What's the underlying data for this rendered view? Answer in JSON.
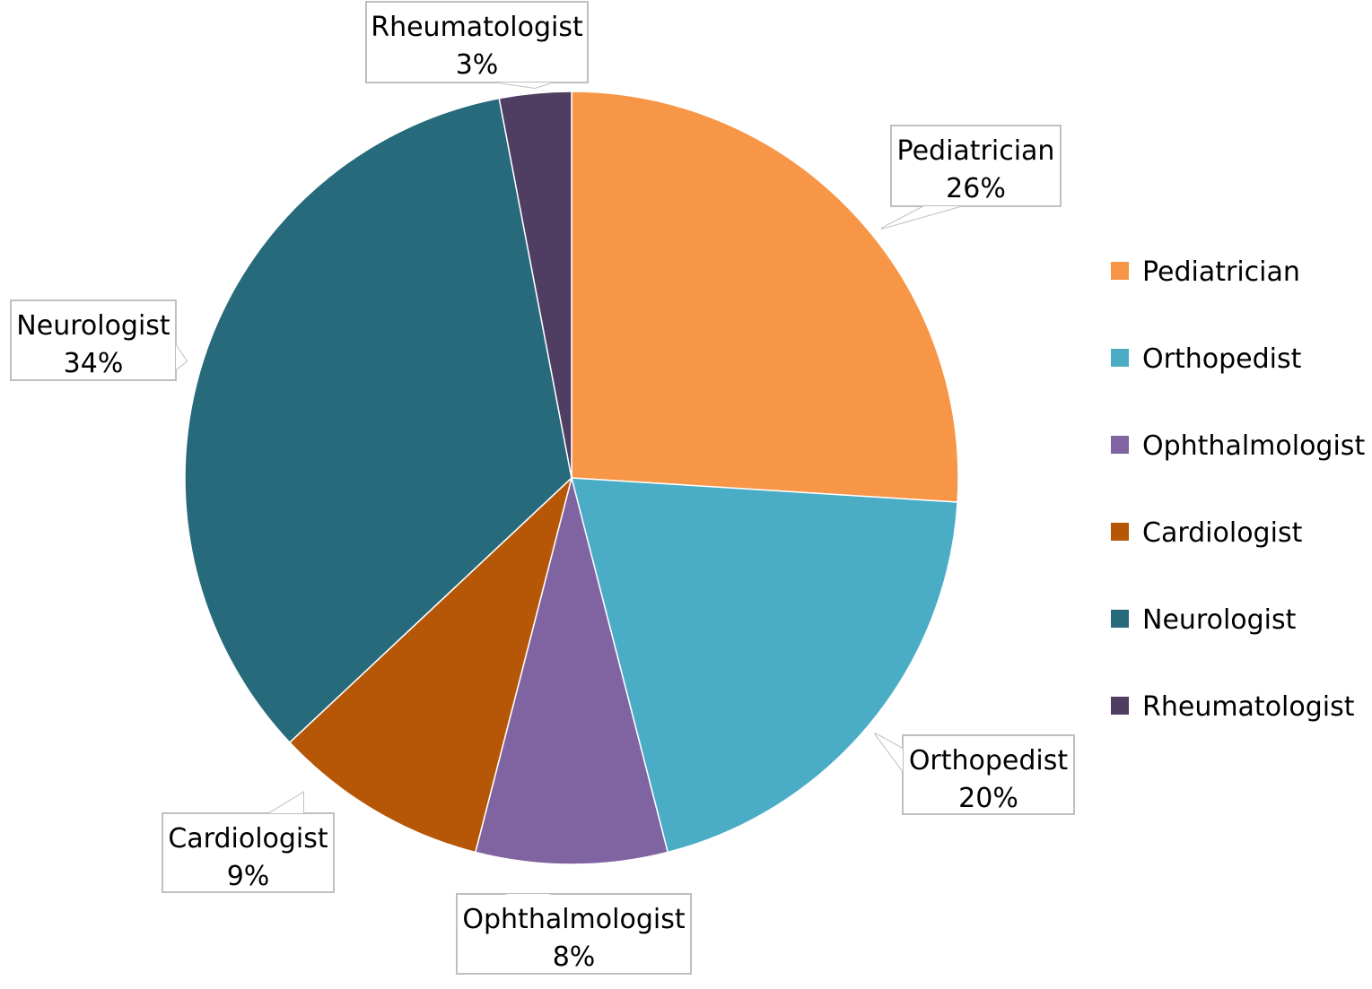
{
  "chart_data": {
    "type": "pie",
    "title": "",
    "slices": [
      {
        "label": "Pediatrician",
        "value": 26,
        "value_text": "26%",
        "color": "#F79646"
      },
      {
        "label": "Orthopedist",
        "value": 20,
        "value_text": "20%",
        "color": "#4BACC6"
      },
      {
        "label": "Ophthalmologist",
        "value": 8,
        "value_text": "8%",
        "color": "#8064A2"
      },
      {
        "label": "Cardiologist",
        "value": 9,
        "value_text": "9%",
        "color": "#B65708"
      },
      {
        "label": "Neurologist",
        "value": 34,
        "value_text": "34%",
        "color": "#276A7C"
      },
      {
        "label": "Rheumatologist",
        "value": 3,
        "value_text": "3%",
        "color": "#4F3D62"
      }
    ],
    "legend": {
      "placement": "right",
      "entries": [
        "Pediatrician",
        "Orthopedist",
        "Ophthalmologist",
        "Cardiologist",
        "Neurologist",
        "Rheumatologist"
      ]
    }
  }
}
